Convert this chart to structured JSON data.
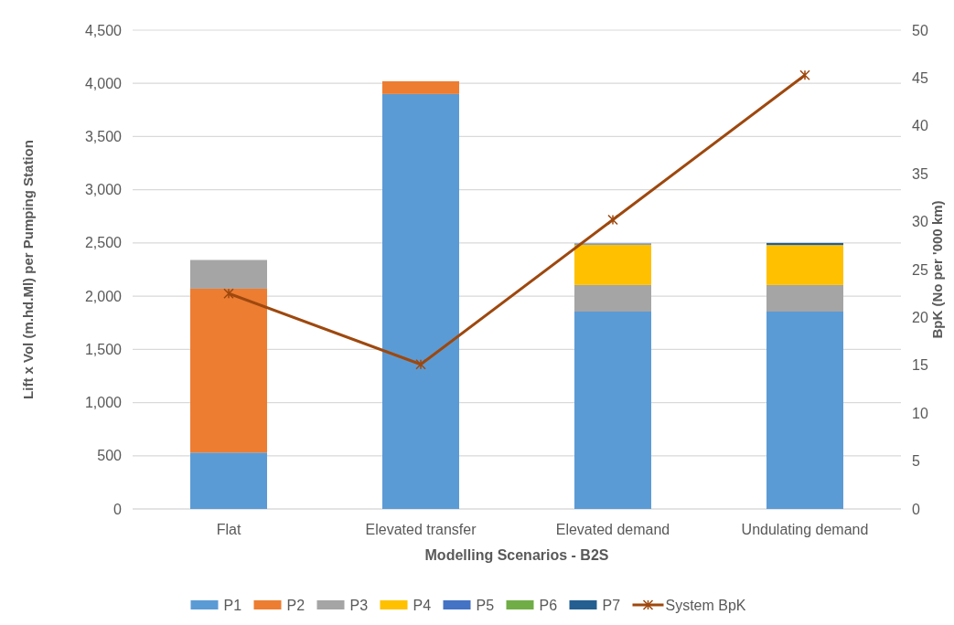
{
  "chart_data": {
    "type": "bar",
    "stacked": true,
    "xlabel": "Modelling Scenarios - B2S",
    "ylabel": "Lift x Vol (m.hd.Ml) per Pumping Station",
    "y2label": "BpK (No per '000 km)",
    "categories": [
      "Flat",
      "Elevated transfer",
      "Elevated demand",
      "Undulating demand"
    ],
    "series": [
      {
        "name": "P1",
        "color": "#5b9bd5",
        "values": [
          530,
          3900,
          1855,
          1855
        ]
      },
      {
        "name": "P2",
        "color": "#ed7d31",
        "values": [
          1540,
          120,
          0,
          0
        ]
      },
      {
        "name": "P3",
        "color": "#a5a5a5",
        "values": [
          270,
          0,
          250,
          250
        ]
      },
      {
        "name": "P4",
        "color": "#ffc000",
        "values": [
          0,
          0,
          380,
          375
        ]
      },
      {
        "name": "P5",
        "color": "#4472c4",
        "values": [
          0,
          0,
          10,
          0
        ]
      },
      {
        "name": "P6",
        "color": "#70ad47",
        "values": [
          0,
          0,
          0,
          0
        ]
      },
      {
        "name": "P7",
        "color": "#255e91",
        "values": [
          0,
          0,
          0,
          20
        ]
      },
      {
        "name": "System BpK",
        "type": "line",
        "axis": "y2",
        "color": "#9e480e",
        "marker": "cross",
        "values": [
          22.5,
          15.1,
          30.2,
          45.3
        ]
      }
    ],
    "ylim": [
      0,
      4500
    ],
    "yticks": [
      {
        "value": 0,
        "label": "0"
      },
      {
        "value": 500,
        "label": "500"
      },
      {
        "value": 1000,
        "label": "1,000"
      },
      {
        "value": 1500,
        "label": "1,500"
      },
      {
        "value": 2000,
        "label": "2,000"
      },
      {
        "value": 2500,
        "label": "2,500"
      },
      {
        "value": 3000,
        "label": "3,000"
      },
      {
        "value": 3500,
        "label": "3,500"
      },
      {
        "value": 4000,
        "label": "4,000"
      },
      {
        "value": 4500,
        "label": "4,500"
      }
    ],
    "y2lim": [
      0,
      50
    ],
    "y2ticks": [
      0,
      5,
      10,
      15,
      20,
      25,
      30,
      35,
      40,
      45,
      50
    ],
    "grid": "y",
    "legend": "bottom"
  }
}
